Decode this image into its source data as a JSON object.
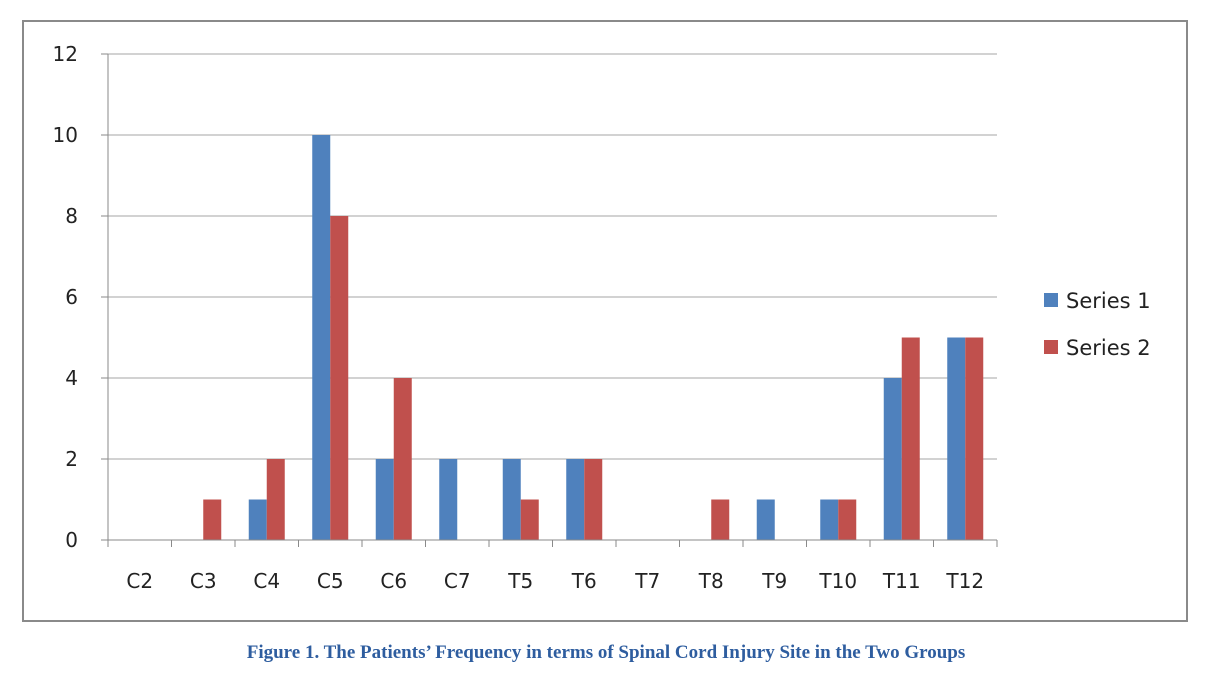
{
  "figure_caption": "Figure 1. The Patients’ Frequency in terms of Spinal Cord Injury Site in the Two Groups",
  "chart_data": {
    "type": "bar",
    "categories": [
      "C2",
      "C3",
      "C4",
      "C5",
      "C6",
      "C7",
      "T5",
      "T6",
      "T7",
      "T8",
      "T9",
      "T10",
      "T11",
      "T12"
    ],
    "series": [
      {
        "name": "Series 1",
        "color": "#4f81bd",
        "values": [
          0,
          0,
          1,
          10,
          2,
          2,
          2,
          2,
          0,
          0,
          1,
          1,
          4,
          5
        ]
      },
      {
        "name": "Series 2",
        "color": "#c0504d",
        "values": [
          0,
          1,
          2,
          8,
          4,
          0,
          1,
          2,
          0,
          1,
          0,
          1,
          5,
          5
        ]
      }
    ],
    "title": "",
    "xlabel": "",
    "ylabel": "",
    "ylim": [
      0,
      12
    ],
    "yticks": [
      0,
      2,
      4,
      6,
      8,
      10,
      12
    ],
    "grid": true,
    "legend_position": "right"
  }
}
